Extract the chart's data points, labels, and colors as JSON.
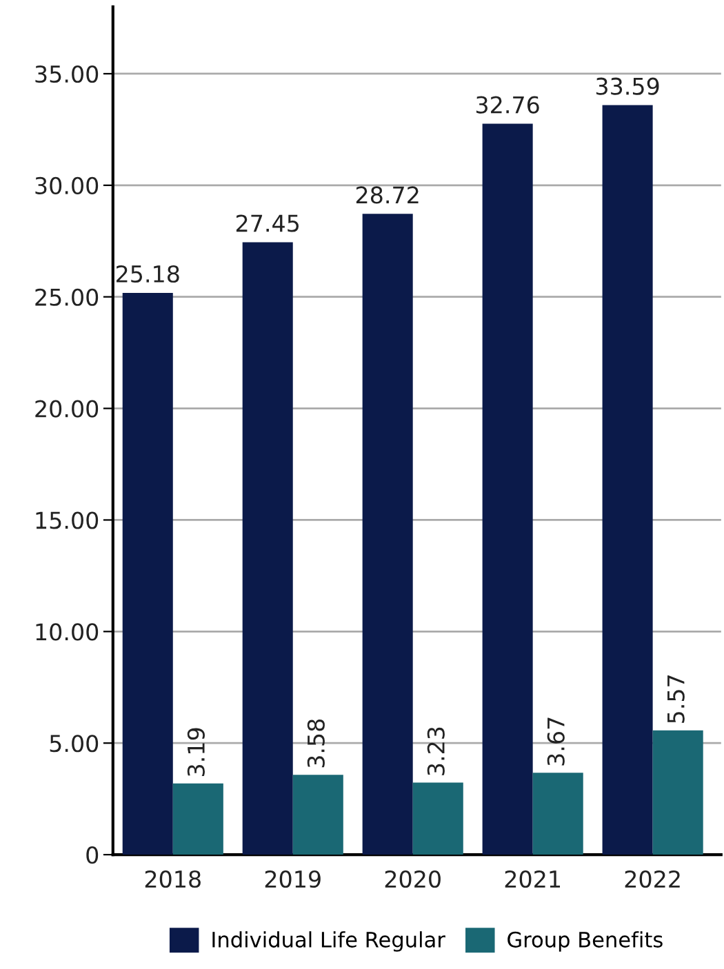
{
  "chart_data": {
    "type": "bar",
    "categories": [
      "2018",
      "2019",
      "2020",
      "2021",
      "2022"
    ],
    "series": [
      {
        "name": "Individual Life Regular",
        "color": "#0b1a4a",
        "values": [
          25.18,
          27.45,
          28.72,
          32.76,
          33.59
        ]
      },
      {
        "name": "Group Benefits",
        "color": "#1a6874",
        "values": [
          3.19,
          3.58,
          3.23,
          3.67,
          5.57
        ]
      }
    ],
    "ylim": [
      0,
      38
    ],
    "yticks": [
      {
        "value": 0,
        "label": "0"
      },
      {
        "value": 5,
        "label": "5.00"
      },
      {
        "value": 10,
        "label": "10.00"
      },
      {
        "value": 15,
        "label": "15.00"
      },
      {
        "value": 20,
        "label": "20.00"
      },
      {
        "value": 25,
        "label": "25.00"
      },
      {
        "value": 30,
        "label": "30.00"
      },
      {
        "value": 35,
        "label": "35.00"
      }
    ],
    "grid": "y",
    "legend": "bottom",
    "data_labels": true
  }
}
